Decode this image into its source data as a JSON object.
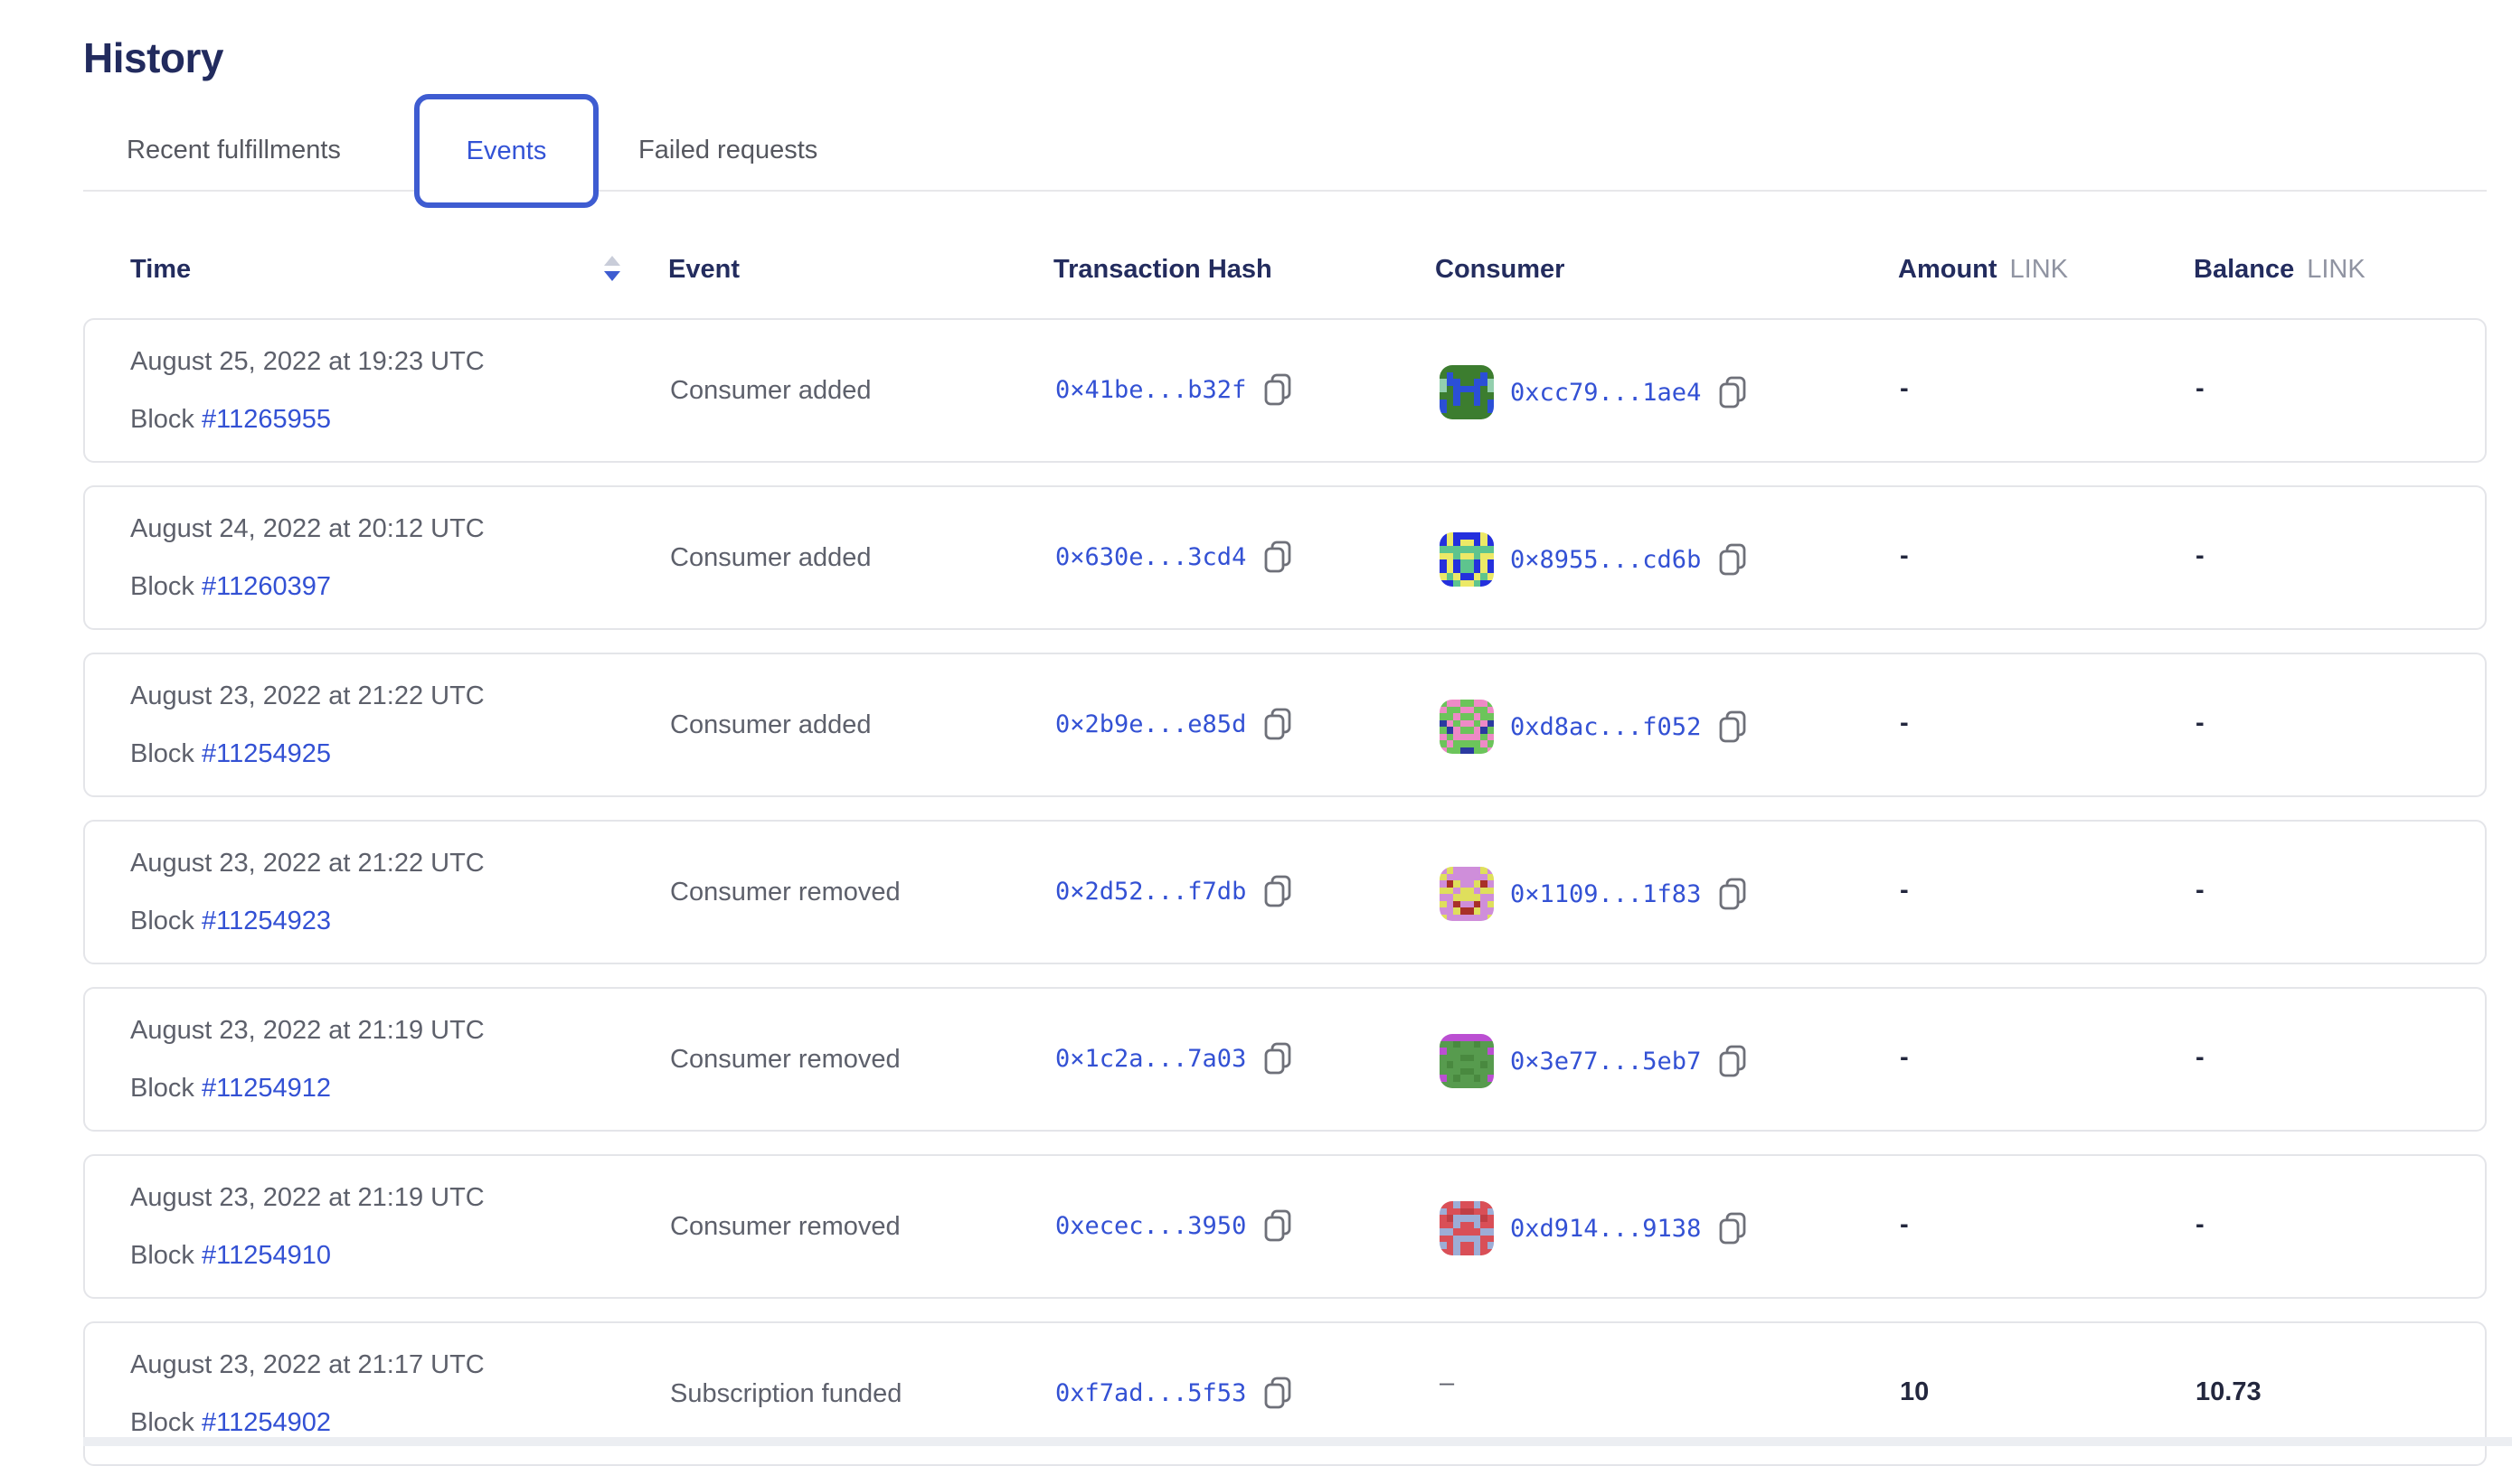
{
  "page": {
    "title": "History"
  },
  "colors": {
    "accent_blue": "#3e5cd1",
    "link_blue": "#3351d4",
    "heading_navy": "#232c5e",
    "body_gray": "#5d606b",
    "unit_gray": "#9094a2",
    "card_border": "#e4e5e9"
  },
  "tabs": [
    {
      "label": "Recent fulfillments",
      "active": false
    },
    {
      "label": "Events",
      "active": true
    },
    {
      "label": "Failed requests",
      "active": false
    }
  ],
  "table": {
    "block_label": "Block",
    "columns": {
      "time": "Time",
      "event": "Event",
      "tx": "Transaction Hash",
      "consumer": "Consumer",
      "amount": "Amount",
      "balance": "Balance",
      "unit": "LINK"
    },
    "sort": {
      "column": "Time",
      "direction": "desc"
    },
    "rows": [
      {
        "date": "August 25, 2022 at 19:23 UTC",
        "block_number": "#11265955",
        "event": "Consumer added",
        "tx": "0×41be...b32f",
        "consumer": {
          "address": "0xcc79...1ae4",
          "icon": {
            "name": "blockie-identicon",
            "colors": [
              "#3c7d2f",
              "#2b4fd7",
              "#93cfae"
            ],
            "pattern": [
              "00000000",
              "01000010",
              "21100112",
              "20111102",
              "00100100",
              "10100101",
              "10000001",
              "00000000"
            ]
          }
        },
        "amount": "-",
        "balance": "-"
      },
      {
        "date": "August 24, 2022 at 20:12 UTC",
        "block_number": "#11260397",
        "event": "Consumer added",
        "tx": "0×630e...3cd4",
        "consumer": {
          "address": "0×8955...cd6b",
          "icon": {
            "name": "blockie-identicon",
            "colors": [
              "#2430dd",
              "#ece967",
              "#5ec48e"
            ],
            "pattern": [
              "01000010",
              "01011010",
              "22222222",
              "11211211",
              "01022010",
              "01022010",
              "12100121",
              "00211200"
            ]
          }
        },
        "amount": "-",
        "balance": "-"
      },
      {
        "date": "August 23, 2022 at 21:22 UTC",
        "block_number": "#11254925",
        "event": "Consumer added",
        "tx": "0×2b9e...e85d",
        "consumer": {
          "address": "0xd8ac...f052",
          "icon": {
            "name": "blockie-identicon",
            "colors": [
              "#6cc45b",
              "#ee8ac6",
              "#2b3aa0"
            ],
            "pattern": [
              "01100110",
              "10011001",
              "00100100",
              "21011012",
              "02100120",
              "10111101",
              "01000010",
              "10022001"
            ]
          }
        },
        "amount": "-",
        "balance": "-"
      },
      {
        "date": "August 23, 2022 at 21:22 UTC",
        "block_number": "#11254923",
        "event": "Consumer removed",
        "tx": "0×2d52...f7db",
        "consumer": {
          "address": "0×1109...1f83",
          "icon": {
            "name": "blockie-identicon",
            "colors": [
              "#cf8eda",
              "#dfdf5c",
              "#a83028"
            ],
            "pattern": [
              "01000010",
              "10000001",
              "02100120",
              "11011011",
              "00111100",
              "10200201",
              "00122100",
              "10000001"
            ]
          }
        },
        "amount": "-",
        "balance": "-"
      },
      {
        "date": "August 23, 2022 at 21:19 UTC",
        "block_number": "#11254912",
        "event": "Consumer removed",
        "tx": "0×1c2a...7a03",
        "consumer": {
          "address": "0×3e77...5eb7",
          "icon": {
            "name": "blockie-identicon",
            "colors": [
              "#579b4e",
              "#bb4fd2",
              "#49893f"
            ],
            "pattern": [
              "11111111",
              "00200200",
              "10000001",
              "00022000",
              "02000020",
              "00022000",
              "10200201",
              "00000000"
            ]
          }
        },
        "amount": "-",
        "balance": "-"
      },
      {
        "date": "August 23, 2022 at 21:19 UTC",
        "block_number": "#11254910",
        "event": "Consumer removed",
        "tx": "0xecec...3950",
        "consumer": {
          "address": "0xd914...9138",
          "icon": {
            "name": "blockie-identicon",
            "colors": [
              "#d94f57",
              "#9dadd6",
              "#c03e44"
            ],
            "pattern": [
              "00100100",
              "10022001",
              "02111120",
              "00100100",
              "11000011",
              "00111100",
              "10100101",
              "00100100"
            ]
          }
        },
        "amount": "-",
        "balance": "-"
      },
      {
        "date": "August 23, 2022 at 21:17 UTC",
        "block_number": "#11254902",
        "event": "Subscription funded",
        "tx": "0xf7ad...5f53",
        "consumer": {
          "address": "–",
          "icon": null
        },
        "amount": "10",
        "balance": "10.73"
      }
    ]
  }
}
